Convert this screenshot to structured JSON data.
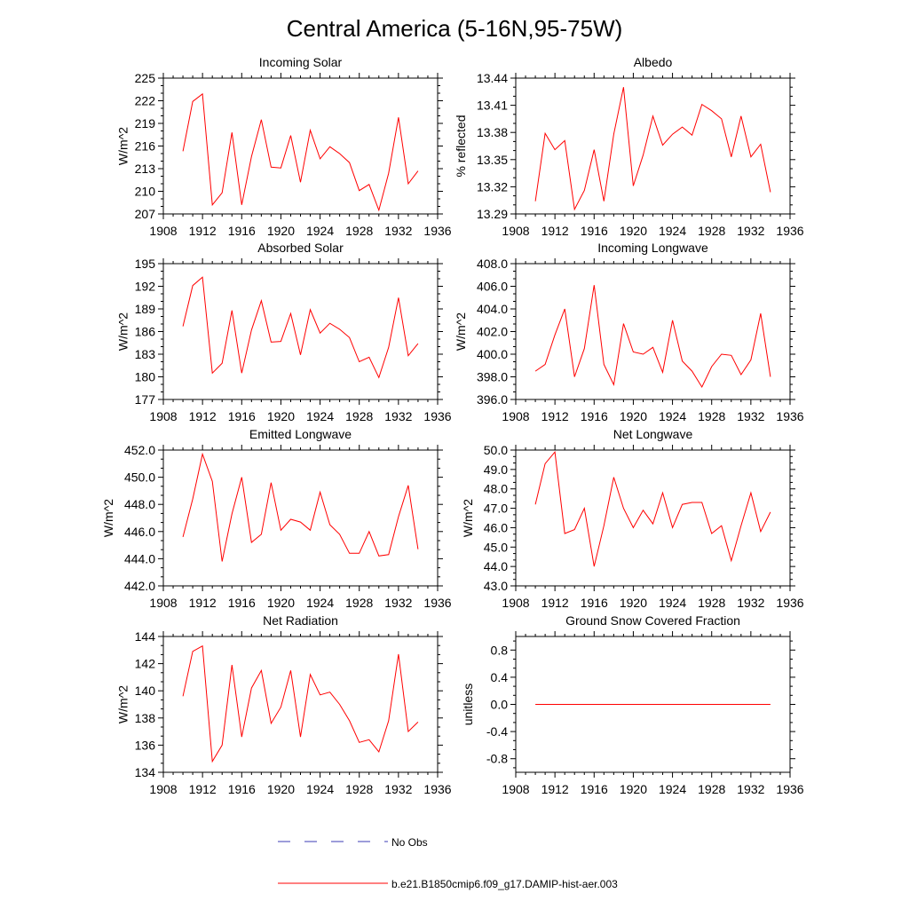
{
  "figure_title": "Central America (5-16N,95-75W)",
  "colors": {
    "model": "#ff0000",
    "obs": "#3b3bb5",
    "axis": "#000000"
  },
  "legend": [
    {
      "label": "No Obs",
      "style": "dashed",
      "color": "#3b3bb5"
    },
    {
      "label": "b.e21.B1850cmip6.f09_g17.DAMIP-hist-aer.003",
      "style": "solid",
      "color": "#ff0000"
    }
  ],
  "chart_data": [
    {
      "type": "line",
      "title": "Incoming Solar",
      "ylabel": "W/m^2",
      "xlim": [
        1908,
        1936
      ],
      "xticks": [
        "1908",
        "1912",
        "1916",
        "1920",
        "1924",
        "1928",
        "1932",
        "1936"
      ],
      "ylim": [
        207,
        225
      ],
      "yticks": [
        "207",
        "210",
        "213",
        "216",
        "219",
        "222",
        "225"
      ],
      "x": [
        1910,
        1911,
        1912,
        1913,
        1914,
        1915,
        1916,
        1917,
        1918,
        1919,
        1920,
        1921,
        1922,
        1923,
        1924,
        1925,
        1926,
        1927,
        1928,
        1929,
        1930,
        1931,
        1932,
        1933,
        1934
      ],
      "series": [
        {
          "values": [
            215.3,
            221.9,
            222.9,
            208.2,
            209.8,
            217.8,
            208.2,
            214.6,
            219.5,
            213.2,
            213.1,
            217.4,
            211.2,
            218.1,
            214.3,
            215.9,
            215.0,
            213.8,
            210.1,
            210.9,
            207.5,
            212.4,
            219.8,
            211.0,
            212.7
          ]
        }
      ]
    },
    {
      "type": "line",
      "title": "Albedo",
      "ylabel": "% reflected",
      "xlim": [
        1908,
        1936
      ],
      "xticks": [
        "1908",
        "1912",
        "1916",
        "1920",
        "1924",
        "1928",
        "1932",
        "1936"
      ],
      "ylim": [
        13.29,
        13.44
      ],
      "yticks": [
        "13.29",
        "13.32",
        "13.35",
        "13.38",
        "13.41",
        "13.44"
      ],
      "x": [
        1910,
        1911,
        1912,
        1913,
        1914,
        1915,
        1916,
        1917,
        1918,
        1919,
        1920,
        1921,
        1922,
        1923,
        1924,
        1925,
        1926,
        1927,
        1928,
        1929,
        1930,
        1931,
        1932,
        1933,
        1934
      ],
      "series": [
        {
          "values": [
            13.304,
            13.379,
            13.361,
            13.371,
            13.295,
            13.316,
            13.361,
            13.304,
            13.378,
            13.43,
            13.321,
            13.355,
            13.398,
            13.366,
            13.378,
            13.386,
            13.377,
            13.411,
            13.404,
            13.395,
            13.353,
            13.398,
            13.353,
            13.367,
            13.314
          ]
        }
      ]
    },
    {
      "type": "line",
      "title": "Absorbed Solar",
      "ylabel": "W/m^2",
      "xlim": [
        1908,
        1936
      ],
      "xticks": [
        "1908",
        "1912",
        "1916",
        "1920",
        "1924",
        "1928",
        "1932",
        "1936"
      ],
      "ylim": [
        177,
        195
      ],
      "yticks": [
        "177",
        "180",
        "183",
        "186",
        "189",
        "192",
        "195"
      ],
      "x": [
        1910,
        1911,
        1912,
        1913,
        1914,
        1915,
        1916,
        1917,
        1918,
        1919,
        1920,
        1921,
        1922,
        1923,
        1924,
        1925,
        1926,
        1927,
        1928,
        1929,
        1930,
        1931,
        1932,
        1933,
        1934
      ],
      "series": [
        {
          "values": [
            186.7,
            192.1,
            193.2,
            180.5,
            181.8,
            188.8,
            180.5,
            186.2,
            190.1,
            184.6,
            184.7,
            188.4,
            182.9,
            188.9,
            185.8,
            187.1,
            186.3,
            185.2,
            182.0,
            182.6,
            179.9,
            183.9,
            190.5,
            182.8,
            184.4
          ]
        }
      ]
    },
    {
      "type": "line",
      "title": "Incoming Longwave",
      "ylabel": "W/m^2",
      "xlim": [
        1908,
        1936
      ],
      "xticks": [
        "1908",
        "1912",
        "1916",
        "1920",
        "1924",
        "1928",
        "1932",
        "1936"
      ],
      "ylim": [
        396.0,
        408.0
      ],
      "yticks": [
        "396.0",
        "398.0",
        "400.0",
        "402.0",
        "404.0",
        "406.0",
        "408.0"
      ],
      "x": [
        1910,
        1911,
        1912,
        1913,
        1914,
        1915,
        1916,
        1917,
        1918,
        1919,
        1920,
        1921,
        1922,
        1923,
        1924,
        1925,
        1926,
        1927,
        1928,
        1929,
        1930,
        1931,
        1932,
        1933,
        1934
      ],
      "series": [
        {
          "values": [
            398.5,
            399.1,
            401.7,
            404.0,
            398.0,
            400.5,
            406.1,
            399.1,
            397.3,
            402.7,
            400.2,
            400.0,
            400.6,
            398.4,
            403.0,
            399.4,
            398.5,
            397.1,
            398.9,
            400.0,
            399.9,
            398.2,
            399.5,
            403.6,
            398.0
          ]
        }
      ]
    },
    {
      "type": "line",
      "title": "Emitted Longwave",
      "ylabel": "W/m^2",
      "xlim": [
        1908,
        1936
      ],
      "xticks": [
        "1908",
        "1912",
        "1916",
        "1920",
        "1924",
        "1928",
        "1932",
        "1936"
      ],
      "ylim": [
        442.0,
        452.0
      ],
      "yticks": [
        "442.0",
        "444.0",
        "446.0",
        "448.0",
        "450.0",
        "452.0"
      ],
      "x": [
        1910,
        1911,
        1912,
        1913,
        1914,
        1915,
        1916,
        1917,
        1918,
        1919,
        1920,
        1921,
        1922,
        1923,
        1924,
        1925,
        1926,
        1927,
        1928,
        1929,
        1930,
        1931,
        1932,
        1933,
        1934
      ],
      "series": [
        {
          "values": [
            445.6,
            448.4,
            451.7,
            449.7,
            443.8,
            447.3,
            450.0,
            445.2,
            445.8,
            449.6,
            446.1,
            446.9,
            446.7,
            446.1,
            448.9,
            446.5,
            445.8,
            444.4,
            444.4,
            446.0,
            444.2,
            444.3,
            447.1,
            449.4,
            444.7
          ]
        }
      ]
    },
    {
      "type": "line",
      "title": "Net Longwave",
      "ylabel": "W/m^2",
      "xlim": [
        1908,
        1936
      ],
      "xticks": [
        "1908",
        "1912",
        "1916",
        "1920",
        "1924",
        "1928",
        "1932",
        "1936"
      ],
      "ylim": [
        43.0,
        50.0
      ],
      "yticks": [
        "43.0",
        "44.0",
        "45.0",
        "46.0",
        "47.0",
        "48.0",
        "49.0",
        "50.0"
      ],
      "x": [
        1910,
        1911,
        1912,
        1913,
        1914,
        1915,
        1916,
        1917,
        1918,
        1919,
        1920,
        1921,
        1922,
        1923,
        1924,
        1925,
        1926,
        1927,
        1928,
        1929,
        1930,
        1931,
        1932,
        1933,
        1934
      ],
      "series": [
        {
          "values": [
            47.2,
            49.3,
            49.9,
            45.7,
            45.9,
            47.0,
            44.0,
            46.1,
            48.6,
            47.0,
            46.0,
            46.9,
            46.2,
            47.8,
            46.0,
            47.2,
            47.3,
            47.3,
            45.7,
            46.1,
            44.3,
            46.1,
            47.8,
            45.8,
            46.8
          ]
        }
      ]
    },
    {
      "type": "line",
      "title": "Net Radiation",
      "ylabel": "W/m^2",
      "xlim": [
        1908,
        1936
      ],
      "xticks": [
        "1908",
        "1912",
        "1916",
        "1920",
        "1924",
        "1928",
        "1932",
        "1936"
      ],
      "ylim": [
        134,
        144
      ],
      "yticks": [
        "134",
        "136",
        "138",
        "140",
        "142",
        "144"
      ],
      "x": [
        1910,
        1911,
        1912,
        1913,
        1914,
        1915,
        1916,
        1917,
        1918,
        1919,
        1920,
        1921,
        1922,
        1923,
        1924,
        1925,
        1926,
        1927,
        1928,
        1929,
        1930,
        1931,
        1932,
        1933,
        1934
      ],
      "series": [
        {
          "values": [
            139.6,
            142.9,
            143.3,
            134.8,
            136.0,
            141.9,
            136.6,
            140.2,
            141.5,
            137.6,
            138.8,
            141.5,
            136.6,
            141.2,
            139.7,
            139.9,
            139.0,
            137.8,
            136.2,
            136.4,
            135.5,
            137.8,
            142.7,
            137.0,
            137.7
          ]
        }
      ]
    },
    {
      "type": "line",
      "title": "Ground Snow Covered Fraction",
      "ylabel": "unitless",
      "xlim": [
        1908,
        1936
      ],
      "xticks": [
        "1908",
        "1912",
        "1916",
        "1920",
        "1924",
        "1928",
        "1932",
        "1936"
      ],
      "ylim": [
        -1.0,
        1.0
      ],
      "yticks": [
        "-0.8",
        "-0.4",
        "0.0",
        "0.4",
        "0.8"
      ],
      "x": [
        1910,
        1934
      ],
      "series": [
        {
          "values": [
            0.0,
            0.0
          ]
        }
      ]
    }
  ]
}
